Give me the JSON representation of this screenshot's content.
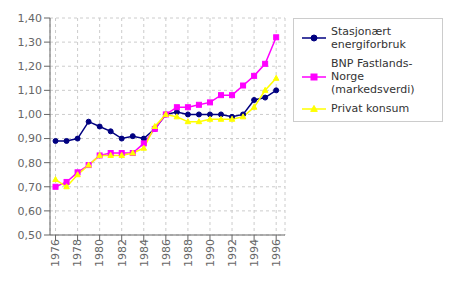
{
  "chart_data": {
    "type": "line",
    "x": [
      1976,
      1977,
      1978,
      1979,
      1980,
      1981,
      1982,
      1983,
      1984,
      1985,
      1986,
      1987,
      1988,
      1989,
      1990,
      1991,
      1992,
      1993,
      1994,
      1995,
      1996
    ],
    "series": [
      {
        "name": "Stasjonært energiforbruk",
        "color": "#000080",
        "marker": "circle",
        "values": [
          0.89,
          0.89,
          0.9,
          0.97,
          0.95,
          0.93,
          0.9,
          0.91,
          0.9,
          0.94,
          1.0,
          1.01,
          1.0,
          1.0,
          1.0,
          1.0,
          0.99,
          1.0,
          1.06,
          1.07,
          1.1
        ]
      },
      {
        "name": "BNP Fastlands-Norge\n(markedsverdi)",
        "color": "#FF00FF",
        "marker": "square",
        "values": [
          0.7,
          0.72,
          0.76,
          0.79,
          0.83,
          0.84,
          0.84,
          0.84,
          0.88,
          0.94,
          1.0,
          1.03,
          1.03,
          1.04,
          1.05,
          1.08,
          1.08,
          1.12,
          1.16,
          1.21,
          1.32
        ]
      },
      {
        "name": "Privat konsum",
        "color": "#FFFF00",
        "marker": "triangle",
        "values": [
          0.73,
          0.7,
          0.75,
          0.79,
          0.83,
          0.83,
          0.83,
          0.84,
          0.86,
          0.95,
          1.0,
          0.99,
          0.97,
          0.97,
          0.98,
          0.98,
          0.98,
          0.99,
          1.03,
          1.1,
          1.15
        ]
      }
    ],
    "xlim": [
      1975.5,
      1996.8
    ],
    "xticks": [
      1976,
      1978,
      1980,
      1982,
      1984,
      1986,
      1988,
      1990,
      1992,
      1994,
      1996
    ],
    "ylim": [
      0.5,
      1.4
    ],
    "yticks": [
      {
        "value": 0.5,
        "label": "0,50"
      },
      {
        "value": 0.6,
        "label": "0,60"
      },
      {
        "value": 0.7,
        "label": "0,70"
      },
      {
        "value": 0.8,
        "label": "0,80"
      },
      {
        "value": 0.9,
        "label": "0,90"
      },
      {
        "value": 1.0,
        "label": "1,00"
      },
      {
        "value": 1.1,
        "label": "1,10"
      },
      {
        "value": 1.2,
        "label": "1,20"
      },
      {
        "value": 1.3,
        "label": "1,30"
      },
      {
        "value": 1.4,
        "label": "1,40"
      }
    ],
    "grid": true,
    "legend": "upper right"
  }
}
